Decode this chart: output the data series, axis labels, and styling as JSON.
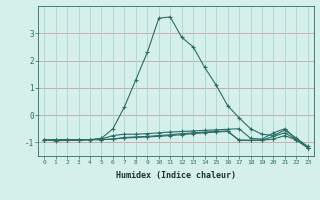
{
  "xlabel": "Humidex (Indice chaleur)",
  "x_values": [
    0,
    1,
    2,
    3,
    4,
    5,
    6,
    7,
    8,
    9,
    10,
    11,
    12,
    13,
    14,
    15,
    16,
    17,
    18,
    19,
    20,
    21,
    22,
    23
  ],
  "line1": [
    -0.9,
    -0.9,
    -0.9,
    -0.9,
    -0.9,
    -0.85,
    -0.5,
    0.3,
    1.3,
    2.3,
    3.55,
    3.6,
    2.85,
    2.5,
    1.75,
    1.1,
    0.35,
    -0.1,
    -0.5,
    -0.7,
    -0.75,
    -0.55,
    -0.85,
    -1.15
  ],
  "line2": [
    -0.9,
    -0.9,
    -0.9,
    -0.9,
    -0.9,
    -0.88,
    -0.75,
    -0.7,
    -0.7,
    -0.68,
    -0.65,
    -0.62,
    -0.6,
    -0.58,
    -0.56,
    -0.54,
    -0.52,
    -0.5,
    -0.85,
    -0.88,
    -0.65,
    -0.5,
    -0.88,
    -1.2
  ],
  "line3": [
    -0.9,
    -0.95,
    -0.92,
    -0.92,
    -0.9,
    -0.9,
    -0.88,
    -0.82,
    -0.8,
    -0.78,
    -0.75,
    -0.72,
    -0.68,
    -0.65,
    -0.62,
    -0.6,
    -0.58,
    -0.92,
    -0.93,
    -0.92,
    -0.78,
    -0.65,
    -0.9,
    -1.2
  ],
  "line4": [
    -0.9,
    -0.92,
    -0.92,
    -0.92,
    -0.9,
    -0.9,
    -0.88,
    -0.84,
    -0.82,
    -0.8,
    -0.78,
    -0.75,
    -0.72,
    -0.68,
    -0.65,
    -0.62,
    -0.6,
    -0.92,
    -0.92,
    -0.92,
    -0.88,
    -0.75,
    -0.92,
    -1.2
  ],
  "line_color": "#2a6e62",
  "bg_color": "#d5f0eb",
  "grid_color_h": "#c8a0a0",
  "grid_color_v": "#a8d8d0",
  "ylim": [
    -1.5,
    4.0
  ],
  "yticks": [
    -1,
    0,
    1,
    2,
    3
  ],
  "figsize": [
    3.2,
    2.0
  ],
  "dpi": 100
}
